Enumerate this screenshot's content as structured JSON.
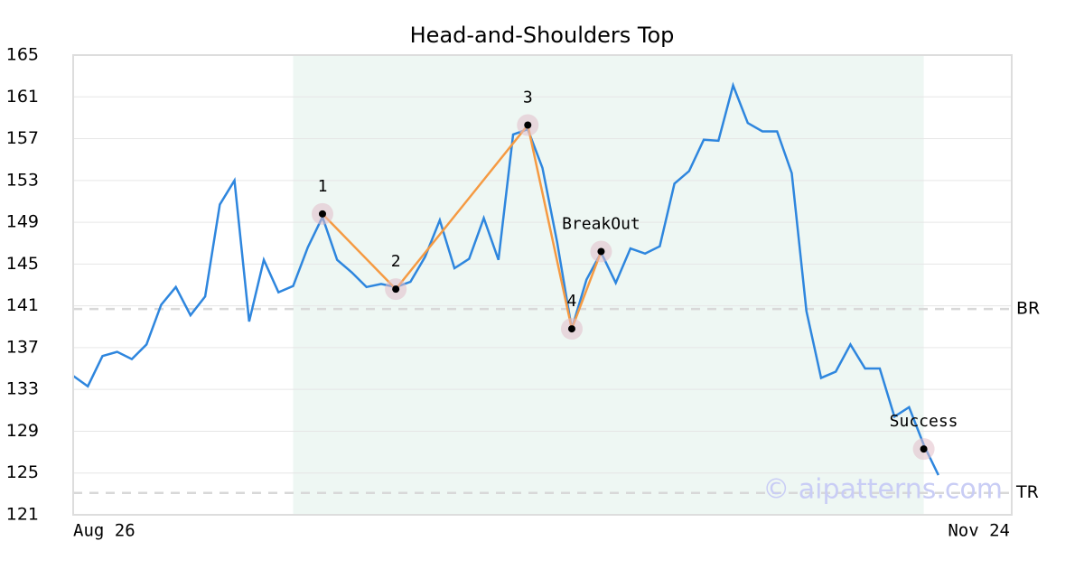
{
  "chart_data": {
    "type": "line",
    "title": "Head-and-Shoulders Top",
    "x": [
      0,
      1,
      2,
      3,
      4,
      5,
      6,
      7,
      8,
      9,
      10,
      11,
      12,
      13,
      14,
      15,
      16,
      17,
      18,
      19,
      20,
      21,
      22,
      23,
      24,
      25,
      26,
      27,
      28,
      29,
      30,
      31,
      32,
      33,
      34,
      35,
      36,
      37,
      38,
      39,
      40,
      41,
      42,
      43,
      44,
      45,
      46,
      47,
      48,
      49,
      50,
      51,
      52,
      53,
      54,
      55,
      56,
      57,
      58,
      59
    ],
    "values": [
      134.3,
      133.3,
      136.2,
      136.6,
      135.9,
      137.3,
      141.1,
      142.8,
      140.1,
      141.9,
      150.7,
      153.0,
      139.5,
      145.4,
      142.3,
      142.9,
      146.6,
      149.5,
      145.4,
      144.2,
      142.8,
      143.1,
      142.8,
      143.3,
      145.7,
      149.2,
      144.6,
      145.5,
      149.4,
      145.4,
      157.4,
      157.9,
      154.2,
      147.1,
      138.8,
      143.5,
      146.1,
      143.2,
      146.5,
      146.0,
      146.7,
      152.7,
      153.9,
      156.9,
      156.8,
      162.1,
      158.5,
      157.7,
      157.7,
      153.7,
      140.5,
      134.1,
      134.7,
      137.3,
      135.0,
      135.0,
      130.4,
      131.3,
      127.7,
      124.8
    ],
    "color": "#2e86de",
    "xlim": [
      0,
      64
    ],
    "xticks": [
      {
        "value": 0,
        "label": "Aug 26"
      },
      {
        "value": 64,
        "label": "Nov 24"
      }
    ],
    "ylim": [
      121,
      165
    ],
    "yticks": [
      121,
      125,
      129,
      133,
      137,
      141,
      145,
      149,
      153,
      157,
      161,
      165
    ],
    "grid": true,
    "highlight": {
      "x": [
        15,
        58
      ],
      "color": "#eef7f3"
    },
    "pattern": {
      "color": "#f59a42",
      "points": [
        {
          "x": 17,
          "y": 149.8,
          "label": "1"
        },
        {
          "x": 22,
          "y": 142.6,
          "label": "2"
        },
        {
          "x": 31,
          "y": 158.3,
          "label": "3"
        },
        {
          "x": 34,
          "y": 138.8,
          "label": "4"
        },
        {
          "x": 36,
          "y": 146.2,
          "label": "BreakOut"
        }
      ]
    },
    "success": {
      "x": 58,
      "y": 127.3,
      "label": "Success"
    },
    "levels": [
      {
        "label": "BR",
        "value": 140.7
      },
      {
        "label": "TR",
        "value": 123.1
      }
    ],
    "watermark": "© aipatterns.com"
  }
}
